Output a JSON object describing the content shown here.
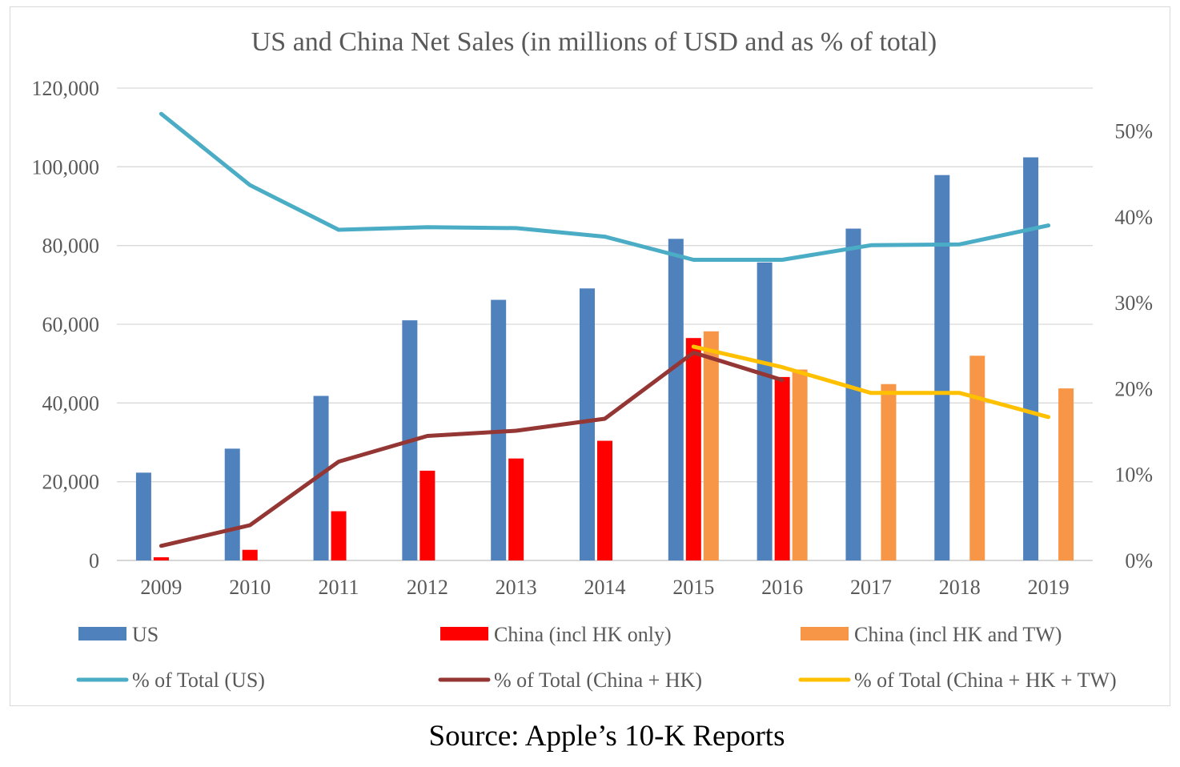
{
  "chart_data": {
    "type": "bar",
    "title": "US and China Net Sales (in millions of USD and as % of total)",
    "categories": [
      "2009",
      "2010",
      "2011",
      "2012",
      "2013",
      "2014",
      "2015",
      "2016",
      "2017",
      "2018",
      "2019"
    ],
    "y_left": {
      "ylim": [
        0,
        120000
      ],
      "ticks": [
        0,
        20000,
        40000,
        60000,
        80000,
        100000,
        120000
      ],
      "tick_labels": [
        "0",
        "20,000",
        "40,000",
        "60,000",
        "80,000",
        "100,000",
        "120,000"
      ]
    },
    "y_right": {
      "ylim": [
        0,
        0.55
      ],
      "ticks": [
        0,
        0.1,
        0.2,
        0.3,
        0.4,
        0.5
      ],
      "tick_labels": [
        "0%",
        "10%",
        "20%",
        "30%",
        "40%",
        "50%"
      ]
    },
    "grid": true,
    "legend_position": "bottom",
    "bar_series": [
      {
        "name": "US",
        "color": "#4f81bd",
        "values": [
          22300,
          28400,
          41800,
          61000,
          66200,
          69100,
          81700,
          75700,
          84300,
          97900,
          102400
        ]
      },
      {
        "name": "China (incl HK only)",
        "color": "#ff0000",
        "values": [
          800,
          2700,
          12500,
          22800,
          25900,
          30400,
          56500,
          46600,
          null,
          null,
          null
        ]
      },
      {
        "name": "China (incl HK and TW)",
        "color": "#f79646",
        "values": [
          null,
          null,
          null,
          null,
          null,
          null,
          58200,
          48500,
          44800,
          52000,
          43700
        ]
      }
    ],
    "line_series": [
      {
        "name": "% of Total (US)",
        "color": "#4bacc6",
        "values": [
          0.52,
          0.437,
          0.385,
          0.388,
          0.387,
          0.377,
          0.35,
          0.35,
          0.367,
          0.368,
          0.39
        ]
      },
      {
        "name": "% of Total (China + HK)",
        "color": "#943634",
        "values": [
          0.017,
          0.041,
          0.115,
          0.145,
          0.151,
          0.165,
          0.242,
          0.21,
          null,
          null,
          null
        ]
      },
      {
        "name": "% of Total (China + HK + TW)",
        "color": "#ffc000",
        "values": [
          null,
          null,
          null,
          null,
          null,
          null,
          0.249,
          0.225,
          0.195,
          0.195,
          0.167
        ]
      }
    ]
  },
  "source_note": "Source: Apple’s 10-K Reports"
}
